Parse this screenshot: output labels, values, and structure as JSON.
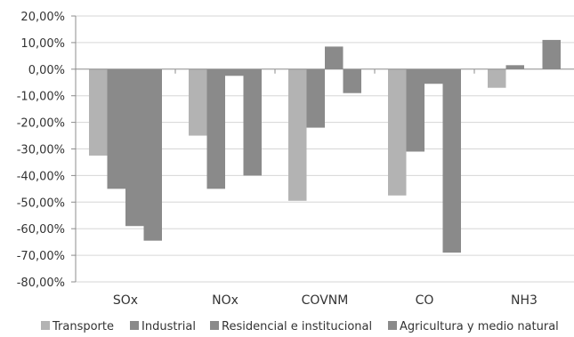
{
  "chart_data": {
    "type": "bar",
    "title": "",
    "xlabel": "",
    "ylabel": "",
    "categories": [
      "SOx",
      "NOx",
      "COVNM",
      "CO",
      "NH3"
    ],
    "ylim": [
      -80,
      20
    ],
    "yticks": [
      20,
      10,
      0,
      -10,
      -20,
      -30,
      -40,
      -50,
      -60,
      -70,
      -80
    ],
    "ytick_labels": [
      "20,00%",
      "10,00%",
      "0,00%",
      "-10,00%",
      "-20,00%",
      "-30,00%",
      "-40,00%",
      "-50,00%",
      "-60,00%",
      "-70,00%",
      "-80,00%"
    ],
    "grid": true,
    "legend_position": "bottom",
    "series": [
      {
        "name": "Transporte",
        "color": "#b3b3b3",
        "values": [
          -32.5,
          -25.0,
          -49.5,
          -47.5,
          -7.0
        ]
      },
      {
        "name": "Industrial",
        "color": "#8a8a8a",
        "values": [
          -45.0,
          -45.0,
          -22.0,
          -31.0,
          1.5
        ]
      },
      {
        "name": "Residencial e institucional",
        "color": "#8a8a8a",
        "values": [
          -59.0,
          -2.5,
          8.5,
          -5.5,
          0.0
        ]
      },
      {
        "name": "Agricultura y medio natural",
        "color": "#8a8a8a",
        "values": [
          -64.5,
          -40.0,
          -9.0,
          -69.0,
          11.0
        ]
      }
    ]
  }
}
